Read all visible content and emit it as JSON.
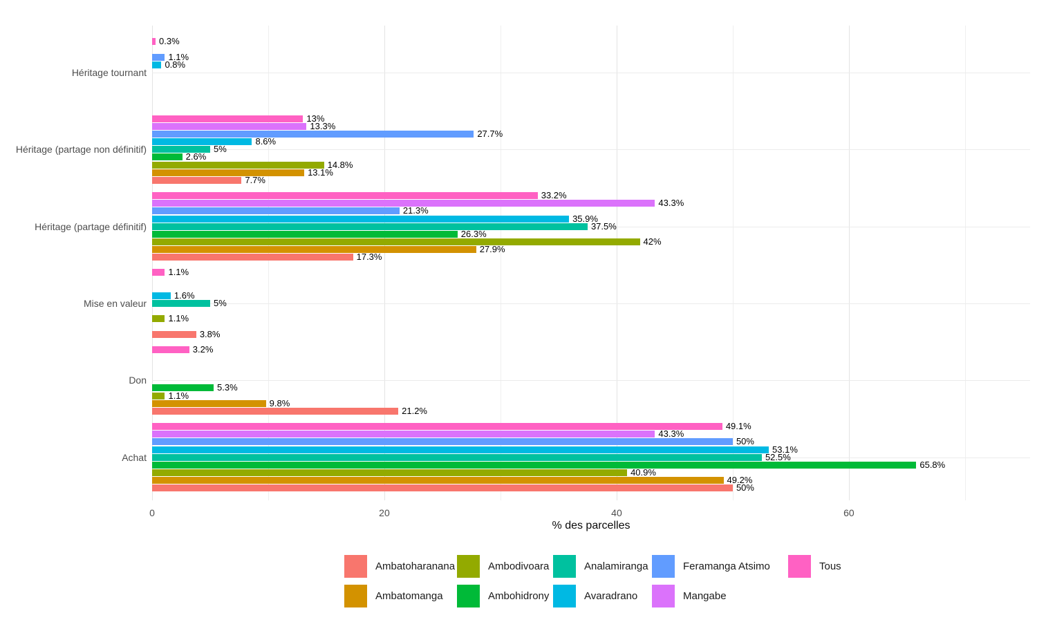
{
  "chart_data": {
    "type": "bar",
    "orientation": "horizontal",
    "title": "",
    "xlabel": "% des parcelles",
    "ylabel": "",
    "xlim": [
      0,
      75.6
    ],
    "x_major_ticks": [
      0,
      20,
      40,
      60
    ],
    "x_minor_gridlines": [
      10,
      30,
      50,
      70
    ],
    "grid": "on",
    "legend_position": "bottom",
    "value_unit": "%",
    "series_order_top_to_bottom": [
      "Tous",
      "Mangabe",
      "Feramanga Atsimo",
      "Avaradrano",
      "Analamiranga",
      "Ambohidrony",
      "Ambodivoara",
      "Ambatomanga",
      "Ambatoharanana"
    ],
    "series_colors": {
      "Tous": "#FF61C3",
      "Mangabe": "#DB72FB",
      "Feramanga Atsimo": "#619CFF",
      "Avaradrano": "#00B9E3",
      "Analamiranga": "#00C19F",
      "Ambohidrony": "#00BA38",
      "Ambodivoara": "#93AA00",
      "Ambatomanga": "#D39200",
      "Ambatoharanana": "#F8766D"
    },
    "groups_top_to_bottom": [
      {
        "category": "Héritage tournant",
        "values": [
          0.3,
          null,
          1.1,
          0.8,
          null,
          null,
          null,
          null,
          null
        ],
        "labels": [
          "0.3%",
          null,
          "1.1%",
          "0.8%",
          null,
          null,
          null,
          null,
          null
        ]
      },
      {
        "category": "Héritage (partage non définitif)",
        "values": [
          13,
          13.3,
          27.7,
          8.6,
          5,
          2.6,
          14.8,
          13.1,
          7.7
        ],
        "labels": [
          "13%",
          "13.3%",
          "27.7%",
          "8.6%",
          "5%",
          "2.6%",
          "14.8%",
          "13.1%",
          "7.7%"
        ]
      },
      {
        "category": "Héritage (partage définitif)",
        "values": [
          33.2,
          43.3,
          21.3,
          35.9,
          37.5,
          26.3,
          42,
          27.9,
          17.3
        ],
        "labels": [
          "33.2%",
          "43.3%",
          "21.3%",
          "35.9%",
          "37.5%",
          "26.3%",
          "42%",
          "27.9%",
          "17.3%"
        ]
      },
      {
        "category": "Mise en valeur",
        "values": [
          1.1,
          null,
          null,
          1.6,
          5,
          null,
          1.1,
          null,
          3.8
        ],
        "labels": [
          "1.1%",
          null,
          null,
          "1.6%",
          "5%",
          null,
          "1.1%",
          null,
          "3.8%"
        ]
      },
      {
        "category": "Don",
        "values": [
          3.2,
          null,
          null,
          null,
          null,
          5.3,
          1.1,
          9.8,
          21.2
        ],
        "labels": [
          "3.2%",
          null,
          null,
          null,
          null,
          "5.3%",
          "1.1%",
          "9.8%",
          "21.2%"
        ]
      },
      {
        "category": "Achat",
        "values": [
          49.1,
          43.3,
          50,
          53.1,
          52.5,
          65.8,
          40.9,
          49.2,
          50
        ],
        "labels": [
          "49.1%",
          "43.3%",
          "50%",
          "53.1%",
          "52.5%",
          "65.8%",
          "40.9%",
          "49.2%",
          "50%"
        ]
      }
    ]
  },
  "legend": {
    "columns": [
      [
        "Ambatoharanana",
        "Ambatomanga"
      ],
      [
        "Ambodivoara",
        "Ambohidrony"
      ],
      [
        "Analamiranga",
        "Avaradrano"
      ],
      [
        "Feramanga Atsimo",
        "Mangabe"
      ],
      [
        "Tous"
      ]
    ]
  }
}
